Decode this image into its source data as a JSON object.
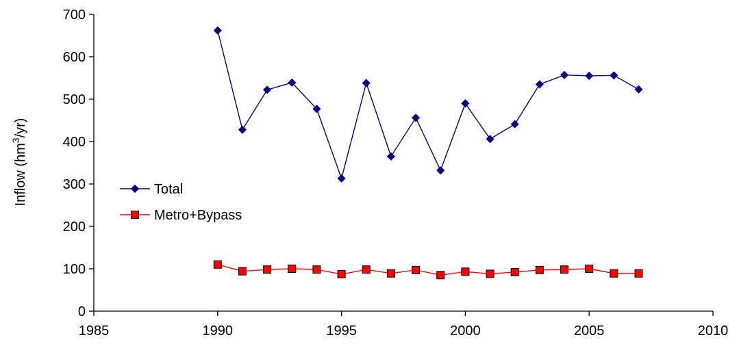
{
  "chart_data": {
    "type": "line",
    "title": "",
    "xlabel": "",
    "ylabel": {
      "prefix": "Inflow (hm",
      "superscript": "3",
      "suffix": "/yr)"
    },
    "xlim": [
      1985,
      2010
    ],
    "ylim": [
      0,
      700
    ],
    "xticks": [
      1985,
      1990,
      1995,
      2000,
      2005,
      2010
    ],
    "yticks": [
      0,
      100,
      200,
      300,
      400,
      500,
      600,
      700
    ],
    "grid": false,
    "legend_position": "left",
    "x": [
      1990,
      1991,
      1992,
      1993,
      1994,
      1995,
      1996,
      1997,
      1998,
      1999,
      2000,
      2001,
      2002,
      2003,
      2004,
      2005,
      2006,
      2007
    ],
    "series": [
      {
        "name": "Total",
        "color": "#000080",
        "marker": "diamond",
        "values": [
          662,
          428,
          522,
          539,
          477,
          313,
          538,
          365,
          456,
          332,
          490,
          406,
          441,
          535,
          557,
          555,
          556,
          523
        ]
      },
      {
        "name": "Metro+Bypass",
        "color": "#ff0000",
        "marker_fill": "#ff0000",
        "marker": "square",
        "values": [
          110,
          94,
          98,
          100,
          98,
          87,
          98,
          89,
          97,
          85,
          93,
          88,
          92,
          97,
          98,
          100,
          89,
          89
        ]
      }
    ]
  }
}
